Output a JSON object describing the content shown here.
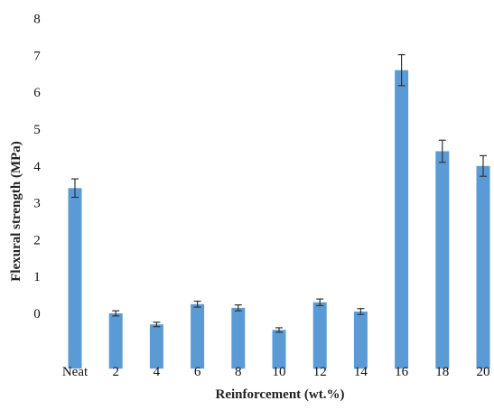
{
  "chart_data": {
    "type": "bar",
    "title": "",
    "xlabel": "Reinforcement (wt.%)",
    "ylabel": "Flexural strength (MPa)",
    "ylim": [
      -1.5,
      8
    ],
    "y_ticks": [
      "0",
      "1",
      "2",
      "3",
      "4",
      "5",
      "6",
      "7",
      "8"
    ],
    "categories": [
      "Neat",
      "2",
      "4",
      "6",
      "8",
      "10",
      "12",
      "14",
      "16",
      "18",
      "20"
    ],
    "values": [
      3.4,
      0.0,
      -0.3,
      0.25,
      0.15,
      -0.45,
      0.3,
      0.05,
      6.6,
      4.4,
      4.0
    ],
    "errors": [
      0.25,
      0.07,
      0.06,
      0.08,
      0.08,
      0.06,
      0.09,
      0.08,
      0.42,
      0.3,
      0.28
    ],
    "bar_color": "#5b9bd5",
    "grid": false,
    "legend": "none"
  }
}
